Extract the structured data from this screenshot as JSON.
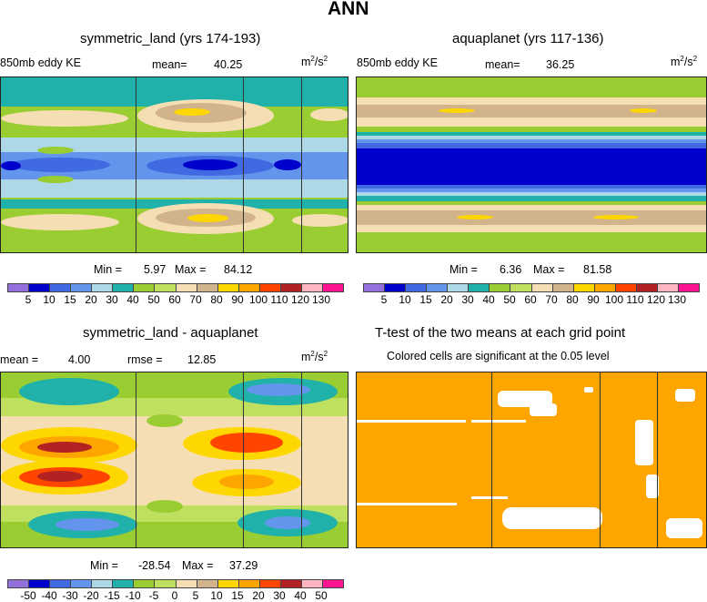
{
  "figure_title": "ANN",
  "unit_label_base": "m",
  "unit_label_exp": "2",
  "unit_label_tail": "/s",
  "unit_label_exp2": "2",
  "panels": {
    "top_left": {
      "title": "symmetric_land (yrs 174-193)",
      "field_label": "850mb eddy KE",
      "mean_label": "mean=",
      "mean_value": "40.25",
      "min_label": "Min =",
      "min_value": "5.97",
      "max_label": "Max =",
      "max_value": "84.12"
    },
    "top_right": {
      "title": "aquaplanet (yrs 117-136)",
      "field_label": "850mb eddy KE",
      "mean_label": "mean=",
      "mean_value": "36.25",
      "min_label": "Min =",
      "min_value": "6.36",
      "max_label": "Max =",
      "max_value": "81.58"
    },
    "bottom_left": {
      "title": "symmetric_land - aquaplanet",
      "mean_label": "mean =",
      "mean_value": "4.00",
      "rmse_label": "rmse =",
      "rmse_value": "12.85",
      "min_label": "Min =",
      "min_value": "-28.54",
      "max_label": "Max =",
      "max_value": "37.29"
    },
    "bottom_right": {
      "title": "T-test of the two means at each grid point",
      "subtitle": "Colored cells are significant at the 0.05 level"
    }
  },
  "colors": {
    "scale": [
      "#9370db",
      "#0000cd",
      "#4169e1",
      "#6495ed",
      "#add8e6",
      "#20b2aa",
      "#9acd32",
      "#bfdf5f",
      "#f5deb3",
      "#d2b48c",
      "#ffd700",
      "#ffa500",
      "#ff4500",
      "#b22222",
      "#ffb6c1",
      "#ff1493"
    ],
    "significant": "#ffa500",
    "insignificant": "#ffffff"
  },
  "chart_data": [
    {
      "type": "heatmap",
      "title": "symmetric_land (yrs 174-193)",
      "subtitle": "850mb eddy KE",
      "units": "m^2/s^2",
      "mean": 40.25,
      "min": 5.97,
      "max": 84.12,
      "colorbar_levels": [
        5,
        10,
        15,
        20,
        30,
        40,
        50,
        60,
        70,
        80,
        90,
        100,
        110,
        120,
        130
      ],
      "colorbar_tick_labels": [
        "5",
        "10",
        "15",
        "20",
        "30",
        "40",
        "50",
        "60",
        "70",
        "80",
        "90",
        "100",
        "110",
        "120",
        "130"
      ]
    },
    {
      "type": "heatmap",
      "title": "aquaplanet (yrs 117-136)",
      "subtitle": "850mb eddy KE",
      "units": "m^2/s^2",
      "mean": 36.25,
      "min": 6.36,
      "max": 81.58,
      "colorbar_levels": [
        5,
        10,
        15,
        20,
        30,
        40,
        50,
        60,
        70,
        80,
        90,
        100,
        110,
        120,
        130
      ],
      "colorbar_tick_labels": [
        "5",
        "10",
        "15",
        "20",
        "30",
        "40",
        "50",
        "60",
        "70",
        "80",
        "90",
        "100",
        "110",
        "120",
        "130"
      ]
    },
    {
      "type": "heatmap",
      "title": "symmetric_land - aquaplanet",
      "units": "m^2/s^2",
      "mean": 4.0,
      "rmse": 12.85,
      "min": -28.54,
      "max": 37.29,
      "colorbar_levels": [
        -50,
        -40,
        -30,
        -20,
        -15,
        -10,
        -5,
        0,
        5,
        10,
        15,
        20,
        30,
        40,
        50
      ],
      "colorbar_tick_labels": [
        "-50",
        "-40",
        "-30",
        "-20",
        "-15",
        "-10",
        "-5",
        "0",
        "5",
        "10",
        "15",
        "20",
        "30",
        "40",
        "50"
      ]
    },
    {
      "type": "heatmap",
      "title": "T-test of the two means at each grid point",
      "subtitle": "Colored cells are significant at the 0.05 level",
      "significance_level": 0.05
    }
  ]
}
